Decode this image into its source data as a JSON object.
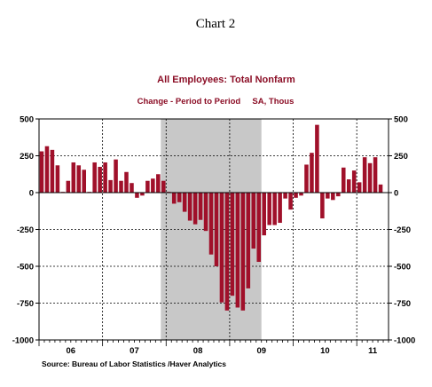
{
  "page": {
    "heading": "Chart 2"
  },
  "colors": {
    "bars": "#a0102a",
    "title": "#8b0d25",
    "recession": "#c8c8c8",
    "axis": "#000000",
    "grid": "#000000"
  },
  "chart_data": {
    "type": "bar",
    "title": "All Employees: Total Nonfarm",
    "subtitle": "Change - Period to Period     SA, Thous",
    "source": "Source:  Bureau of Labor Statistics /Haver Analytics",
    "ylim": [
      -1000,
      500
    ],
    "y_ticks": [
      500,
      250,
      0,
      -250,
      -500,
      -750,
      -1000
    ],
    "y_tick_labels": [
      "500",
      "250",
      "0",
      "-250",
      "-500",
      "-750",
      "-1000"
    ],
    "y_gridlines": [
      250,
      -250,
      -500,
      -750
    ],
    "x_start": "2006-01",
    "x_end": "2011-06",
    "x_tick_labels": [
      "06",
      "07",
      "08",
      "09",
      "10",
      "11"
    ],
    "x_year_gridlines": [
      "2007-01",
      "2008-01",
      "2009-01",
      "2010-01",
      "2011-01"
    ],
    "recession": {
      "start": "2007-12",
      "end": "2009-06"
    },
    "legend": "none",
    "series": [
      {
        "months": [
          "2006-01",
          "2006-02",
          "2006-03",
          "2006-04",
          "2006-05",
          "2006-06",
          "2006-07",
          "2006-08",
          "2006-09",
          "2006-10",
          "2006-11",
          "2006-12",
          "2007-01",
          "2007-02",
          "2007-03",
          "2007-04",
          "2007-05",
          "2007-06",
          "2007-07",
          "2007-08",
          "2007-09",
          "2007-10",
          "2007-11",
          "2007-12",
          "2008-01",
          "2008-02",
          "2008-03",
          "2008-04",
          "2008-05",
          "2008-06",
          "2008-07",
          "2008-08",
          "2008-09",
          "2008-10",
          "2008-11",
          "2008-12",
          "2009-01",
          "2009-02",
          "2009-03",
          "2009-04",
          "2009-05",
          "2009-06",
          "2009-07",
          "2009-08",
          "2009-09",
          "2009-10",
          "2009-11",
          "2009-12",
          "2010-01",
          "2010-02",
          "2010-03",
          "2010-04",
          "2010-05",
          "2010-06",
          "2010-07",
          "2010-08",
          "2010-09",
          "2010-10",
          "2010-11",
          "2010-12",
          "2011-01",
          "2011-02",
          "2011-03",
          "2011-04",
          "2011-05"
        ],
        "values": [
          280,
          315,
          290,
          185,
          5,
          80,
          205,
          185,
          155,
          5,
          205,
          175,
          205,
          85,
          225,
          80,
          140,
          65,
          -35,
          -20,
          80,
          95,
          125,
          80,
          5,
          -75,
          -65,
          -130,
          -190,
          -215,
          -185,
          -260,
          -420,
          -500,
          -745,
          -800,
          -700,
          -780,
          -800,
          -650,
          -380,
          -470,
          -290,
          -220,
          -220,
          -205,
          -40,
          -115,
          -35,
          -20,
          190,
          270,
          460,
          -175,
          -40,
          -50,
          -25,
          170,
          90,
          150,
          70,
          240,
          200,
          240,
          55
        ]
      }
    ]
  }
}
